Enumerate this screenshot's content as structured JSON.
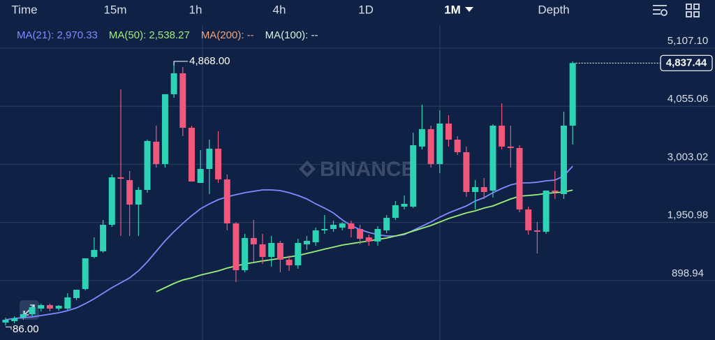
{
  "toolbar": [
    "Time",
    "15m",
    "1h",
    "4h",
    "1D",
    "1M",
    "Depth"
  ],
  "watermark": "BINANCE",
  "indicators": [
    {
      "text": "MA(21): 2,970.33",
      "color": "#7f8cff"
    },
    {
      "text": "MA(50): 2,538.27",
      "color": "#9ef07a"
    },
    {
      "text": "MA(200): --",
      "color": "#f3a27a"
    },
    {
      "text": "MA(100): --",
      "color": "#d6f3e4"
    }
  ],
  "chart_data": {
    "type": "candlestick",
    "up_color": "#2ed3b5",
    "down_color": "#f0577a",
    "open": [
      139,
      165,
      228,
      291,
      392,
      455,
      392,
      392,
      582,
      746,
      1327,
      1429,
      1909,
      2768,
      2718,
      2275,
      2541,
      3413,
      3009,
      4273,
      4652,
      3666,
      2667,
      2920,
      3287,
      2731,
      1934,
      1087,
      1669,
      1555,
      1327,
      1580,
      1277,
      1176,
      1555,
      1593,
      1808,
      1833,
      1858,
      1934,
      1833,
      1681,
      1606,
      1808,
      2035,
      2238,
      2238,
      3325,
      3641,
      3009,
      3742,
      3451,
      3223,
      2503,
      2591,
      2528,
      3704,
      3325,
      3299,
      2187,
      1808,
      1783,
      2528,
      2465,
      3704
    ],
    "high": [
      228,
      253,
      354,
      455,
      481,
      481,
      455,
      670,
      733,
      1302,
      1681,
      1997,
      2819,
      4361,
      2882,
      2591,
      3451,
      3704,
      4273,
      4868,
      4766,
      3704,
      3261,
      3451,
      3603,
      2819,
      1959,
      1745,
      1997,
      1745,
      1707,
      1618,
      1353,
      1656,
      1707,
      1858,
      2086,
      1985,
      1959,
      1985,
      1909,
      1732,
      1884,
      2086,
      2339,
      2440,
      3577,
      4083,
      3704,
      3982,
      3893,
      3514,
      3325,
      2718,
      2756,
      3729,
      4108,
      3704,
      3350,
      2238,
      1959,
      2528,
      2882,
      3957,
      4867
    ],
    "low": [
      86,
      127,
      190,
      253,
      342,
      342,
      354,
      367,
      544,
      721,
      1302,
      1403,
      1871,
      1707,
      1707,
      1707,
      2490,
      2945,
      2945,
      4209,
      3514,
      2693,
      2667,
      2465,
      2667,
      1808,
      872,
      1049,
      1239,
      1201,
      1151,
      1049,
      1075,
      1113,
      1454,
      1530,
      1745,
      1783,
      1808,
      1681,
      1555,
      1530,
      1530,
      1757,
      1997,
      2187,
      2212,
      3274,
      2945,
      2844,
      3325,
      3173,
      2415,
      2187,
      2377,
      2402,
      3274,
      2945,
      2136,
      1732,
      1391,
      1745,
      2377,
      2377,
      3363
    ],
    "close": [
      190,
      215,
      291,
      417,
      455,
      392,
      443,
      594,
      733,
      1302,
      1454,
      1909,
      2768,
      2743,
      2275,
      2541,
      3426,
      3009,
      4273,
      4652,
      3666,
      2693,
      2920,
      3287,
      2731,
      1934,
      1087,
      1669,
      1555,
      1327,
      1580,
      1277,
      1176,
      1580,
      1618,
      1808,
      1833,
      1909,
      1934,
      1833,
      1656,
      1606,
      1833,
      2035,
      2263,
      2288,
      3350,
      3641,
      3009,
      3742,
      3451,
      3223,
      2503,
      2591,
      2503,
      3704,
      3325,
      3299,
      2187,
      1808,
      1783,
      2528,
      2503,
      3704,
      4837.44
    ],
    "lines": [
      {
        "color": "#7f8cff",
        "values": [
          190,
          215,
          228,
          240,
          266,
          291,
          316,
          354,
          405,
          481,
          569,
          670,
          771,
          860,
          948,
          1075,
          1239,
          1429,
          1618,
          1783,
          1934,
          2073,
          2200,
          2288,
          2364,
          2415,
          2453,
          2490,
          2516,
          2541,
          2541,
          2528,
          2490,
          2440,
          2377,
          2288,
          2212,
          2124,
          1997,
          1896,
          1821,
          1770,
          1732,
          1707,
          1707,
          1732,
          1808,
          1884,
          1959,
          2048,
          2124,
          2187,
          2250,
          2339,
          2402,
          2490,
          2566,
          2630,
          2667,
          2667,
          2680,
          2705,
          2718,
          2794,
          2970.33
        ]
      },
      {
        "color": "#9ef07a",
        "values": [
          null,
          null,
          null,
          null,
          null,
          null,
          null,
          null,
          null,
          null,
          null,
          null,
          null,
          null,
          null,
          null,
          null,
          696,
          771,
          847,
          910,
          948,
          999,
          1037,
          1075,
          1125,
          1163,
          1201,
          1226,
          1254,
          1277,
          1302,
          1327,
          1353,
          1391,
          1429,
          1467,
          1504,
          1542,
          1568,
          1593,
          1618,
          1644,
          1669,
          1707,
          1745,
          1795,
          1846,
          1896,
          1959,
          2023,
          2073,
          2124,
          2162,
          2212,
          2250,
          2313,
          2377,
          2427,
          2440,
          2453,
          2478,
          2490,
          2503,
          2538.27
        ]
      }
    ],
    "ylim": [
      -177,
      5524
    ],
    "yticks": [
      {
        "value": 898.94,
        "label": "898.94"
      },
      {
        "value": 1950.98,
        "label": "1,950.98"
      },
      {
        "value": 3003.02,
        "label": "3,003.02"
      },
      {
        "value": 4055.06,
        "label": "4,055.06"
      },
      {
        "value": 5107.1,
        "label": "5,107.10"
      }
    ],
    "high_label": "4,868.00",
    "low_label": "86.00",
    "last_label": "4,837.44"
  }
}
